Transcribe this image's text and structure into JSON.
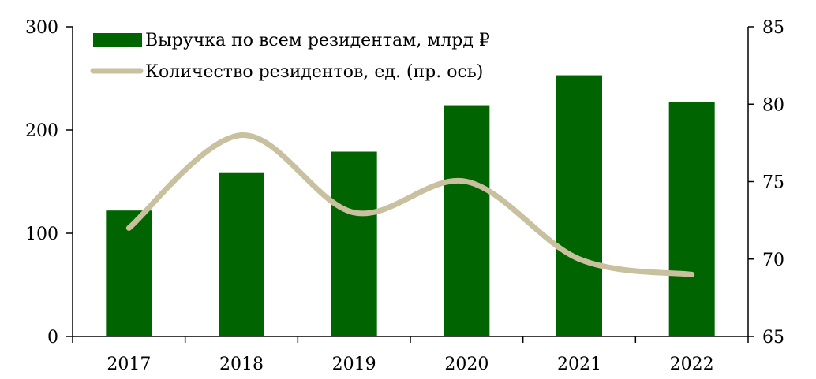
{
  "chart_data": {
    "type": "bar",
    "categories": [
      "2017",
      "2018",
      "2019",
      "2020",
      "2021",
      "2022"
    ],
    "series": [
      {
        "name": "Выручка по всем резидентам, млрд ₽",
        "type": "bar",
        "axis": "left",
        "values": [
          122,
          159,
          179,
          224,
          253,
          227
        ],
        "color": "#006400"
      },
      {
        "name": "Количество резидентов, ед. (пр. ось)",
        "type": "line",
        "axis": "right",
        "values": [
          72,
          78,
          73,
          75,
          70,
          69
        ],
        "color": "#c8c09e",
        "smooth": true
      }
    ],
    "y_left": {
      "range": [
        0,
        300
      ],
      "ticks": [
        0,
        100,
        200,
        300
      ]
    },
    "y_right": {
      "range": [
        65,
        85
      ],
      "ticks": [
        65,
        70,
        75,
        80,
        85
      ]
    },
    "legend_position": "top-left",
    "grid": false
  }
}
